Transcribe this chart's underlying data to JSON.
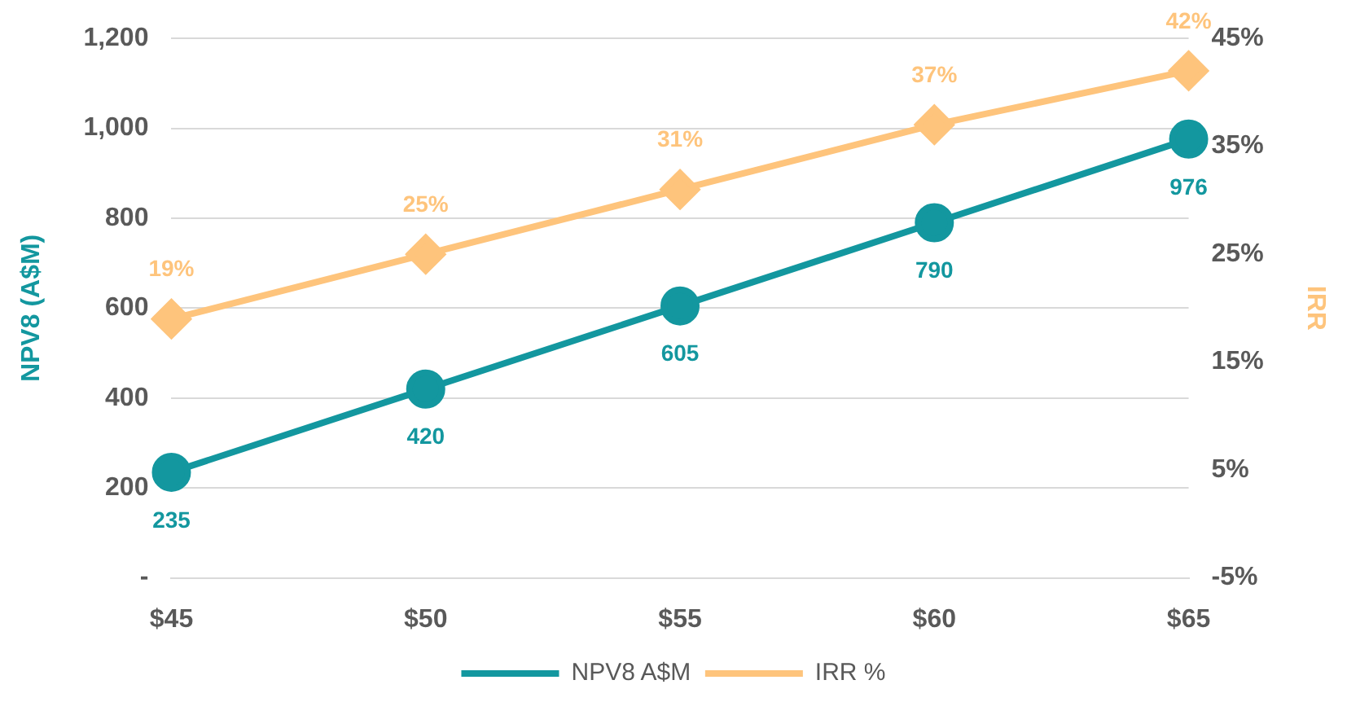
{
  "chart_data": {
    "type": "line",
    "categories": [
      "$45",
      "$50",
      "$55",
      "$60",
      "$65"
    ],
    "ylabel": "NPV8 (A$M)",
    "y2label": "IRR",
    "ylim": [
      0,
      1200
    ],
    "yticks": [
      {
        "value": 0,
        "label": "-"
      },
      200,
      400,
      600,
      800,
      {
        "value": 1000,
        "label": "1,000"
      },
      {
        "value": 1200,
        "label": "1,200"
      }
    ],
    "y2lim": [
      -5,
      45
    ],
    "y2ticks": [
      {
        "value": -5,
        "label": "-5%"
      },
      {
        "value": 5,
        "label": "5%"
      },
      {
        "value": 15,
        "label": "15%"
      },
      {
        "value": 25,
        "label": "25%"
      },
      {
        "value": 35,
        "label": "35%"
      },
      {
        "value": 45,
        "label": "45%"
      }
    ],
    "series": [
      {
        "name": "NPV8 A$M",
        "color": "#13979f",
        "marker": "circle",
        "values": [
          235,
          420,
          605,
          790,
          976
        ],
        "value_labels": [
          "235",
          "420",
          "605",
          "790",
          "976"
        ]
      },
      {
        "name": "IRR %",
        "color": "#fec47c",
        "marker": "diamond",
        "axis": "y2",
        "values": [
          19,
          25,
          31,
          37,
          42
        ],
        "value_labels": [
          "19%",
          "25%",
          "31%",
          "37%",
          "42%"
        ]
      }
    ],
    "grid": "y",
    "legend": "bottom",
    "line_style": "solid"
  }
}
